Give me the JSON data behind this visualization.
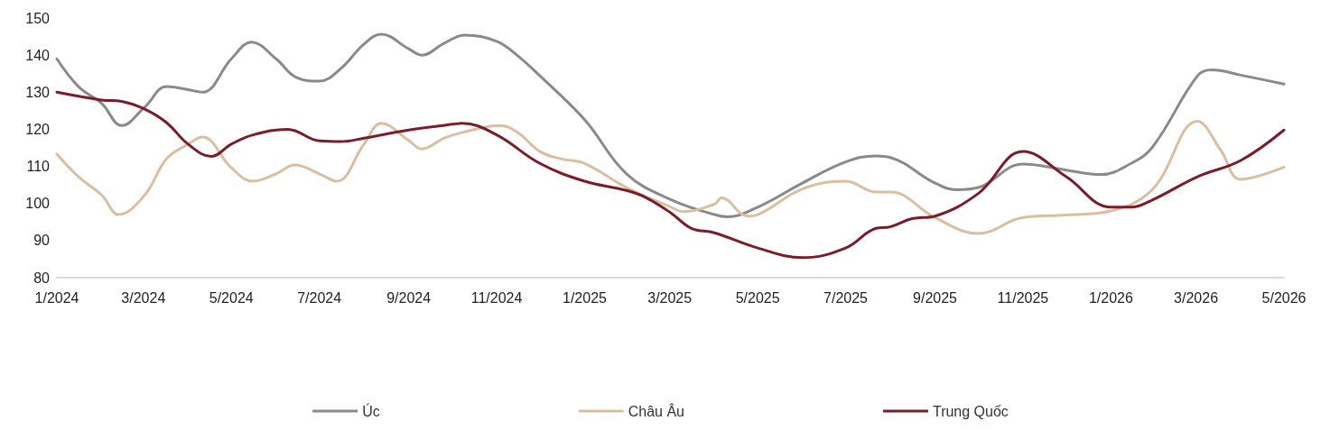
{
  "chart_data": {
    "type": "line",
    "xlim": [
      "2024-01-01",
      "2026-05-01"
    ],
    "xticks": [
      {
        "value": "2024-01-01",
        "label": "1/2024"
      },
      {
        "value": "2024-03-01",
        "label": "3/2024"
      },
      {
        "value": "2024-05-01",
        "label": "5/2024"
      },
      {
        "value": "2024-07-01",
        "label": "7/2024"
      },
      {
        "value": "2024-09-01",
        "label": "9/2024"
      },
      {
        "value": "2024-11-01",
        "label": "11/2024"
      },
      {
        "value": "2025-01-01",
        "label": "1/2025"
      },
      {
        "value": "2025-03-01",
        "label": "3/2025"
      },
      {
        "value": "2025-05-01",
        "label": "5/2025"
      },
      {
        "value": "2025-07-01",
        "label": "7/2025"
      },
      {
        "value": "2025-09-01",
        "label": "9/2025"
      },
      {
        "value": "2025-11-01",
        "label": "11/2025"
      },
      {
        "value": "2026-01-01",
        "label": "1/2026"
      },
      {
        "value": "2026-03-01",
        "label": "3/2026"
      },
      {
        "value": "2026-05-01",
        "label": "5/2026"
      }
    ],
    "ylim": [
      80,
      150
    ],
    "yticks": [
      80,
      90,
      100,
      110,
      120,
      130,
      140,
      150
    ],
    "grid": false,
    "legend": "bottom",
    "marker": "none",
    "line_style": "solid",
    "series": [
      {
        "name": "Úc",
        "color": "#8a8a8a",
        "x": [
          "2024-01-01",
          "2024-01-16",
          "2024-02-01",
          "2024-02-15",
          "2024-03-02",
          "2024-03-17",
          "2024-04-01",
          "2024-04-11",
          "2024-05-01",
          "2024-05-15",
          "2024-06-01",
          "2024-06-15",
          "2024-07-01",
          "2024-07-16",
          "2024-08-01",
          "2024-08-13",
          "2024-09-01",
          "2024-09-10",
          "2024-09-26",
          "2024-10-10",
          "2024-11-01",
          "2024-11-15",
          "2024-12-01",
          "2025-01-01",
          "2025-01-30",
          "2025-03-02",
          "2025-04-01",
          "2025-04-10",
          "2025-05-01",
          "2025-06-01",
          "2025-07-01",
          "2025-07-22",
          "2025-08-01",
          "2025-09-01",
          "2025-09-16",
          "2025-10-01",
          "2025-11-01",
          "2025-12-01",
          "2025-12-25",
          "2026-01-15",
          "2026-01-30",
          "2026-03-02",
          "2026-03-12",
          "2026-04-01",
          "2026-05-01"
        ],
        "values": [
          139,
          131.5,
          127,
          121,
          126,
          131.5,
          130.7,
          130,
          139,
          143.5,
          139,
          134,
          133,
          136.4,
          143,
          145.6,
          141.7,
          140,
          143.3,
          145.4,
          143.7,
          140,
          134.4,
          122.6,
          108,
          101,
          97,
          96.4,
          99,
          105.5,
          111.2,
          112.8,
          112.4,
          105.5,
          103.7,
          104.3,
          110.6,
          109,
          107.8,
          110.8,
          115.3,
          134.4,
          136,
          134.6,
          132.2
        ]
      },
      {
        "name": "Châu Âu",
        "color": "#d9bf9f",
        "x": [
          "2024-01-01",
          "2024-01-16",
          "2024-02-01",
          "2024-02-13",
          "2024-03-02",
          "2024-03-17",
          "2024-04-01",
          "2024-04-11",
          "2024-05-01",
          "2024-05-16",
          "2024-06-01",
          "2024-06-14",
          "2024-07-01",
          "2024-07-13",
          "2024-08-01",
          "2024-08-13",
          "2024-09-01",
          "2024-09-10",
          "2024-09-26",
          "2024-10-10",
          "2024-11-03",
          "2024-11-15",
          "2024-12-01",
          "2024-12-16",
          "2025-01-01",
          "2025-01-30",
          "2025-03-02",
          "2025-03-10",
          "2025-04-01",
          "2025-04-06",
          "2025-04-24",
          "2025-05-01",
          "2025-06-01",
          "2025-07-01",
          "2025-07-22",
          "2025-08-01",
          "2025-09-01",
          "2025-10-01",
          "2025-11-01",
          "2025-12-01",
          "2026-01-01",
          "2026-01-30",
          "2026-03-02",
          "2026-03-18",
          "2026-04-01",
          "2026-05-01"
        ],
        "values": [
          113.3,
          107.2,
          102.3,
          97,
          102.3,
          112,
          116,
          117.9,
          109.6,
          106,
          108,
          110.4,
          108,
          106,
          116,
          121.6,
          117,
          114.7,
          117.7,
          119.3,
          121,
          119.3,
          114,
          112,
          110.8,
          104.3,
          99,
          97.8,
          99.8,
          101.5,
          96.6,
          97,
          103.9,
          106,
          103.1,
          103.1,
          96.2,
          91.9,
          96.2,
          96.9,
          98,
          103.9,
          122.2,
          114.5,
          106.5,
          109.8
        ]
      },
      {
        "name": "Trung Quốc",
        "color": "#7b1c2a",
        "x": [
          "2024-01-01",
          "2024-02-01",
          "2024-02-15",
          "2024-03-02",
          "2024-03-17",
          "2024-04-01",
          "2024-04-17",
          "2024-05-01",
          "2024-05-16",
          "2024-06-09",
          "2024-07-01",
          "2024-07-16",
          "2024-08-01",
          "2024-09-01",
          "2024-09-26",
          "2024-10-08",
          "2024-11-01",
          "2024-12-01",
          "2025-01-01",
          "2025-01-30",
          "2025-02-13",
          "2025-03-02",
          "2025-03-16",
          "2025-04-01",
          "2025-05-01",
          "2025-06-01",
          "2025-07-01",
          "2025-07-22",
          "2025-08-01",
          "2025-08-16",
          "2025-09-01",
          "2025-10-01",
          "2025-11-01",
          "2025-12-01",
          "2026-01-01",
          "2026-01-15",
          "2026-01-30",
          "2026-03-02",
          "2026-04-01",
          "2026-05-01"
        ],
        "values": [
          130,
          127.9,
          127.5,
          125.4,
          121.8,
          116,
          112.7,
          116,
          118.5,
          120,
          116.9,
          116.7,
          117.6,
          119.8,
          121.1,
          121.6,
          118.5,
          110.8,
          106,
          103.5,
          101.5,
          97.4,
          93.3,
          92.1,
          88,
          85.4,
          88,
          93.3,
          93.7,
          95.9,
          96.6,
          102.7,
          114,
          107.2,
          99,
          99,
          101,
          107.2,
          111.6,
          119.8
        ]
      }
    ]
  }
}
